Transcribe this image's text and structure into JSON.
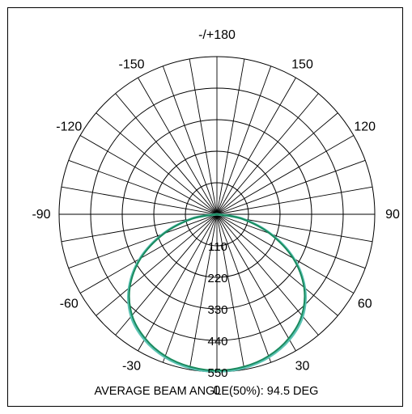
{
  "chart_data": {
    "type": "polar",
    "angle_labels": [
      {
        "angle": 180,
        "text": "-/+180"
      },
      {
        "angle": -150,
        "text": "-150"
      },
      {
        "angle": 150,
        "text": "150"
      },
      {
        "angle": -120,
        "text": "-120"
      },
      {
        "angle": 120,
        "text": "120"
      },
      {
        "angle": -90,
        "text": "-90"
      },
      {
        "angle": 90,
        "text": "90"
      },
      {
        "angle": -60,
        "text": "-60"
      },
      {
        "angle": 60,
        "text": "60"
      },
      {
        "angle": -30,
        "text": "-30"
      },
      {
        "angle": 30,
        "text": "30"
      },
      {
        "angle": 0,
        "text": "0"
      }
    ],
    "radial_ticks": [
      110,
      220,
      330,
      440,
      550
    ],
    "rmax": 550,
    "grid_angle_step_deg": 10,
    "grid": true,
    "series": [
      {
        "color": "#5cc3b4",
        "points": [
          {
            "angle": 0,
            "value": 548
          },
          {
            "angle": 10,
            "value": 544
          },
          {
            "angle": 20,
            "value": 530
          },
          {
            "angle": 30,
            "value": 505
          },
          {
            "angle": 40,
            "value": 465
          },
          {
            "angle": 50,
            "value": 400
          },
          {
            "angle": 60,
            "value": 310
          },
          {
            "angle": 70,
            "value": 200
          },
          {
            "angle": 80,
            "value": 90
          },
          {
            "angle": 90,
            "value": 0
          }
        ]
      },
      {
        "color": "#1a8a5e",
        "points": [
          {
            "angle": 0,
            "value": 545
          },
          {
            "angle": 10,
            "value": 540
          },
          {
            "angle": 20,
            "value": 526
          },
          {
            "angle": 30,
            "value": 500
          },
          {
            "angle": 40,
            "value": 460
          },
          {
            "angle": 50,
            "value": 396
          },
          {
            "angle": 60,
            "value": 306
          },
          {
            "angle": 70,
            "value": 196
          },
          {
            "angle": 80,
            "value": 88
          },
          {
            "angle": 90,
            "value": 0
          }
        ]
      }
    ],
    "annotation": "AVERAGE BEAM ANGLE(50%): 94.5 DEG"
  }
}
